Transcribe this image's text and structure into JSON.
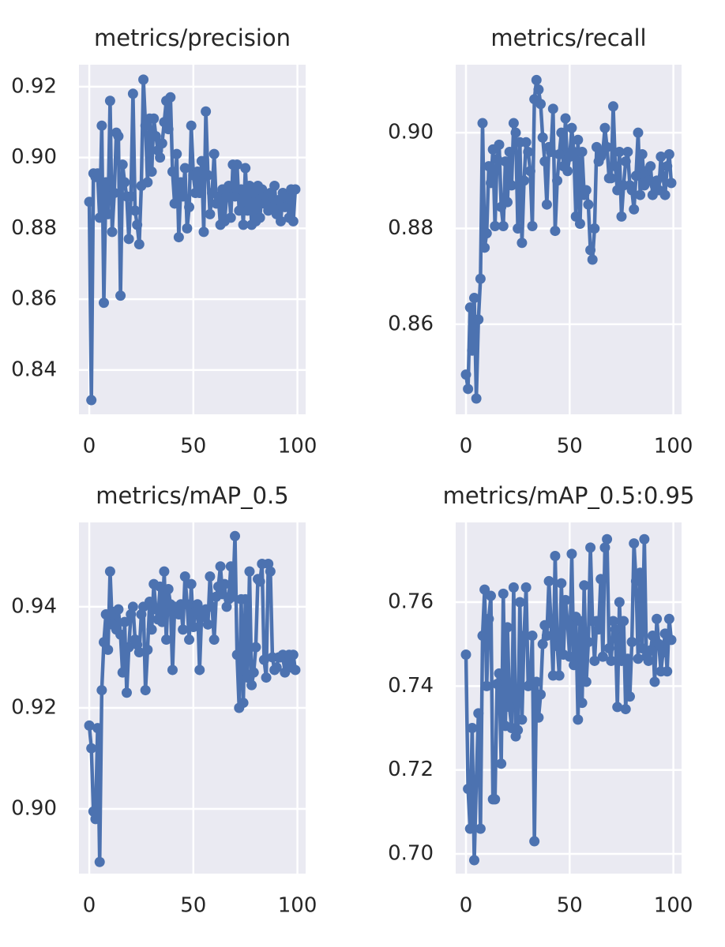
{
  "chart_data": [
    {
      "type": "line",
      "title": "metrics/precision",
      "color": "#4c72b0",
      "grid": true,
      "x": [
        0,
        1,
        2,
        3,
        4,
        5,
        6,
        7,
        8,
        9,
        10,
        11,
        12,
        13,
        14,
        15,
        16,
        17,
        18,
        19,
        20,
        21,
        22,
        23,
        24,
        25,
        26,
        27,
        28,
        29,
        30,
        31,
        32,
        33,
        34,
        35,
        36,
        37,
        38,
        39,
        40,
        41,
        42,
        43,
        44,
        45,
        46,
        47,
        48,
        49,
        50,
        51,
        52,
        53,
        54,
        55,
        56,
        57,
        58,
        59,
        60,
        61,
        62,
        63,
        64,
        65,
        66,
        67,
        68,
        69,
        70,
        71,
        72,
        73,
        74,
        75,
        76,
        77,
        78,
        79,
        80,
        81,
        82,
        83,
        84,
        85,
        86,
        87,
        88,
        89,
        90,
        91,
        92,
        93,
        94,
        95,
        96,
        97,
        98,
        99
      ],
      "values": [
        0.8875,
        0.8315,
        0.8955,
        0.8945,
        0.8955,
        0.883,
        0.909,
        0.859,
        0.893,
        0.884,
        0.916,
        0.879,
        0.89,
        0.907,
        0.906,
        0.861,
        0.898,
        0.893,
        0.889,
        0.877,
        0.889,
        0.918,
        0.885,
        0.881,
        0.8755,
        0.892,
        0.922,
        0.909,
        0.893,
        0.911,
        0.896,
        0.911,
        0.906,
        0.902,
        0.9,
        0.904,
        0.91,
        0.916,
        0.908,
        0.917,
        0.896,
        0.887,
        0.901,
        0.8775,
        0.893,
        0.889,
        0.897,
        0.88,
        0.886,
        0.909,
        0.895,
        0.89,
        0.896,
        0.89,
        0.899,
        0.879,
        0.913,
        0.895,
        0.884,
        0.89,
        0.901,
        0.887,
        0.889,
        0.881,
        0.891,
        0.882,
        0.889,
        0.892,
        0.883,
        0.898,
        0.889,
        0.898,
        0.885,
        0.891,
        0.881,
        0.897,
        0.885,
        0.892,
        0.881,
        0.89,
        0.882,
        0.892,
        0.883,
        0.891,
        0.887,
        0.889,
        0.885,
        0.89,
        0.886,
        0.892,
        0.884,
        0.888,
        0.882,
        0.89,
        0.886,
        0.889,
        0.883,
        0.891,
        0.882,
        0.891
      ],
      "xlim": [
        -4.95,
        103.95
      ],
      "xticks": [
        0,
        50,
        100
      ],
      "ylim": [
        0.8275,
        0.9262
      ],
      "yticks": [
        0.84,
        0.86,
        0.88,
        {
          "value": 0.9,
          "label": "0.90"
        },
        0.92
      ]
    },
    {
      "type": "line",
      "title": "metrics/recall",
      "color": "#4c72b0",
      "grid": true,
      "x": [
        0,
        1,
        2,
        3,
        4,
        5,
        6,
        7,
        8,
        9,
        10,
        11,
        12,
        13,
        14,
        15,
        16,
        17,
        18,
        19,
        20,
        21,
        22,
        23,
        24,
        25,
        26,
        27,
        28,
        29,
        30,
        31,
        32,
        33,
        34,
        35,
        36,
        37,
        38,
        39,
        40,
        41,
        42,
        43,
        44,
        45,
        46,
        47,
        48,
        49,
        50,
        51,
        52,
        53,
        54,
        55,
        56,
        57,
        58,
        59,
        60,
        61,
        62,
        63,
        64,
        65,
        66,
        67,
        68,
        69,
        70,
        71,
        72,
        73,
        74,
        75,
        76,
        77,
        78,
        79,
        80,
        81,
        82,
        83,
        84,
        85,
        86,
        87,
        88,
        89,
        90,
        91,
        92,
        93,
        94,
        95,
        96,
        97,
        98,
        99
      ],
      "values": [
        0.8495,
        0.8465,
        0.8635,
        0.8545,
        0.8655,
        0.8445,
        0.861,
        0.8695,
        0.902,
        0.876,
        0.879,
        0.893,
        0.8895,
        0.8965,
        0.8805,
        0.8945,
        0.8975,
        0.8845,
        0.8805,
        0.894,
        0.8855,
        0.896,
        0.889,
        0.902,
        0.9,
        0.88,
        0.898,
        0.877,
        0.89,
        0.898,
        0.896,
        0.892,
        0.8805,
        0.907,
        0.911,
        0.909,
        0.906,
        0.899,
        0.894,
        0.885,
        0.897,
        0.896,
        0.905,
        0.8795,
        0.89,
        0.8955,
        0.9,
        0.893,
        0.903,
        0.892,
        0.895,
        0.901,
        0.896,
        0.8825,
        0.8985,
        0.881,
        0.896,
        0.887,
        0.888,
        0.885,
        0.8755,
        0.8735,
        0.88,
        0.897,
        0.894,
        0.895,
        0.896,
        0.901,
        0.897,
        0.8905,
        0.8905,
        0.9055,
        0.893,
        0.888,
        0.896,
        0.8825,
        0.889,
        0.894,
        0.896,
        0.889,
        0.888,
        0.884,
        0.891,
        0.9,
        0.887,
        0.8955,
        0.889,
        0.892,
        0.89,
        0.893,
        0.887,
        0.889,
        0.89,
        0.888,
        0.895,
        0.891,
        0.887,
        0.893,
        0.8955,
        0.8895
      ],
      "xlim": [
        -4.95,
        103.95
      ],
      "xticks": [
        0,
        50,
        100
      ],
      "ylim": [
        0.8412,
        0.9142
      ],
      "yticks": [
        0.86,
        0.88,
        {
          "value": 0.9,
          "label": "0.90"
        }
      ]
    },
    {
      "type": "line",
      "title": "metrics/mAP_0.5",
      "color": "#4c72b0",
      "grid": true,
      "x": [
        0,
        1,
        2,
        3,
        4,
        5,
        6,
        7,
        8,
        9,
        10,
        11,
        12,
        13,
        14,
        15,
        16,
        17,
        18,
        19,
        20,
        21,
        22,
        23,
        24,
        25,
        26,
        27,
        28,
        29,
        30,
        31,
        32,
        33,
        34,
        35,
        36,
        37,
        38,
        39,
        40,
        41,
        42,
        43,
        44,
        45,
        46,
        47,
        48,
        49,
        50,
        51,
        52,
        53,
        54,
        55,
        56,
        57,
        58,
        59,
        60,
        61,
        62,
        63,
        64,
        65,
        66,
        67,
        68,
        69,
        70,
        71,
        72,
        73,
        74,
        75,
        76,
        77,
        78,
        79,
        80,
        81,
        82,
        83,
        84,
        85,
        86,
        87,
        88,
        89,
        90,
        91,
        92,
        93,
        94,
        95,
        96,
        97,
        98,
        99
      ],
      "values": [
        0.9165,
        0.912,
        0.8995,
        0.898,
        0.916,
        0.8895,
        0.9235,
        0.933,
        0.9385,
        0.9315,
        0.947,
        0.9365,
        0.939,
        0.9355,
        0.9395,
        0.9345,
        0.927,
        0.937,
        0.923,
        0.932,
        0.9385,
        0.94,
        0.9335,
        0.9325,
        0.931,
        0.9385,
        0.94,
        0.9235,
        0.9315,
        0.941,
        0.9355,
        0.9445,
        0.9395,
        0.9375,
        0.944,
        0.937,
        0.947,
        0.9335,
        0.9435,
        0.9405,
        0.9275,
        0.94,
        0.939,
        0.9385,
        0.9405,
        0.9355,
        0.946,
        0.9405,
        0.9335,
        0.9445,
        0.936,
        0.939,
        0.9405,
        0.9275,
        0.939,
        0.938,
        0.9395,
        0.9365,
        0.946,
        0.94,
        0.9335,
        0.942,
        0.944,
        0.948,
        0.9425,
        0.9445,
        0.94,
        0.9415,
        0.948,
        0.942,
        0.954,
        0.9305,
        0.92,
        0.9415,
        0.921,
        0.9415,
        0.926,
        0.947,
        0.9245,
        0.927,
        0.932,
        0.9455,
        0.945,
        0.9485,
        0.9295,
        0.926,
        0.9485,
        0.947,
        0.93,
        0.9275,
        0.928,
        0.93,
        0.93,
        0.9305,
        0.927,
        0.929,
        0.9305,
        0.928,
        0.9305,
        0.9275
      ],
      "xlim": [
        -4.95,
        103.95
      ],
      "xticks": [
        0,
        50,
        100
      ],
      "ylim": [
        0.8872,
        0.9567
      ],
      "yticks": [
        {
          "value": 0.9,
          "label": "0.90"
        },
        0.92,
        0.94
      ]
    },
    {
      "type": "line",
      "title": "metrics/mAP_0.5:0.95",
      "color": "#4c72b0",
      "grid": true,
      "x": [
        0,
        1,
        2,
        3,
        4,
        5,
        6,
        7,
        8,
        9,
        10,
        11,
        12,
        13,
        14,
        15,
        16,
        17,
        18,
        19,
        20,
        21,
        22,
        23,
        24,
        25,
        26,
        27,
        28,
        29,
        30,
        31,
        32,
        33,
        34,
        35,
        36,
        37,
        38,
        39,
        40,
        41,
        42,
        43,
        44,
        45,
        46,
        47,
        48,
        49,
        50,
        51,
        52,
        53,
        54,
        55,
        56,
        57,
        58,
        59,
        60,
        61,
        62,
        63,
        64,
        65,
        66,
        67,
        68,
        69,
        70,
        71,
        72,
        73,
        74,
        75,
        76,
        77,
        78,
        79,
        80,
        81,
        82,
        83,
        84,
        85,
        86,
        87,
        88,
        89,
        90,
        91,
        92,
        93,
        94,
        95,
        96,
        97,
        98,
        99
      ],
      "values": [
        0.7475,
        0.7155,
        0.706,
        0.73,
        0.6985,
        0.7175,
        0.7335,
        0.706,
        0.752,
        0.763,
        0.74,
        0.756,
        0.7615,
        0.713,
        0.713,
        0.7405,
        0.743,
        0.7215,
        0.762,
        0.7305,
        0.754,
        0.735,
        0.73,
        0.7635,
        0.728,
        0.7295,
        0.76,
        0.732,
        0.752,
        0.7635,
        0.74,
        0.7405,
        0.752,
        0.703,
        0.741,
        0.7325,
        0.738,
        0.75,
        0.7545,
        0.752,
        0.765,
        0.755,
        0.7425,
        0.771,
        0.7495,
        0.7425,
        0.7645,
        0.7475,
        0.7605,
        0.755,
        0.747,
        0.7715,
        0.745,
        0.7565,
        0.732,
        0.7555,
        0.736,
        0.764,
        0.741,
        0.7505,
        0.773,
        0.7555,
        0.746,
        0.7555,
        0.7535,
        0.7655,
        0.747,
        0.773,
        0.775,
        0.749,
        0.746,
        0.7555,
        0.7535,
        0.735,
        0.76,
        0.746,
        0.7555,
        0.7345,
        0.7465,
        0.7375,
        0.7505,
        0.774,
        0.765,
        0.7465,
        0.767,
        0.749,
        0.775,
        0.747,
        0.746,
        0.7485,
        0.752,
        0.741,
        0.756,
        0.75,
        0.7435,
        0.748,
        0.7525,
        0.7435,
        0.756,
        0.751
      ],
      "xlim": [
        -4.95,
        103.95
      ],
      "xticks": [
        0,
        50,
        100
      ],
      "ylim": [
        0.6953,
        0.779
      ],
      "yticks": [
        {
          "value": 0.7,
          "label": "0.70"
        },
        0.72,
        0.74,
        0.76
      ]
    }
  ]
}
